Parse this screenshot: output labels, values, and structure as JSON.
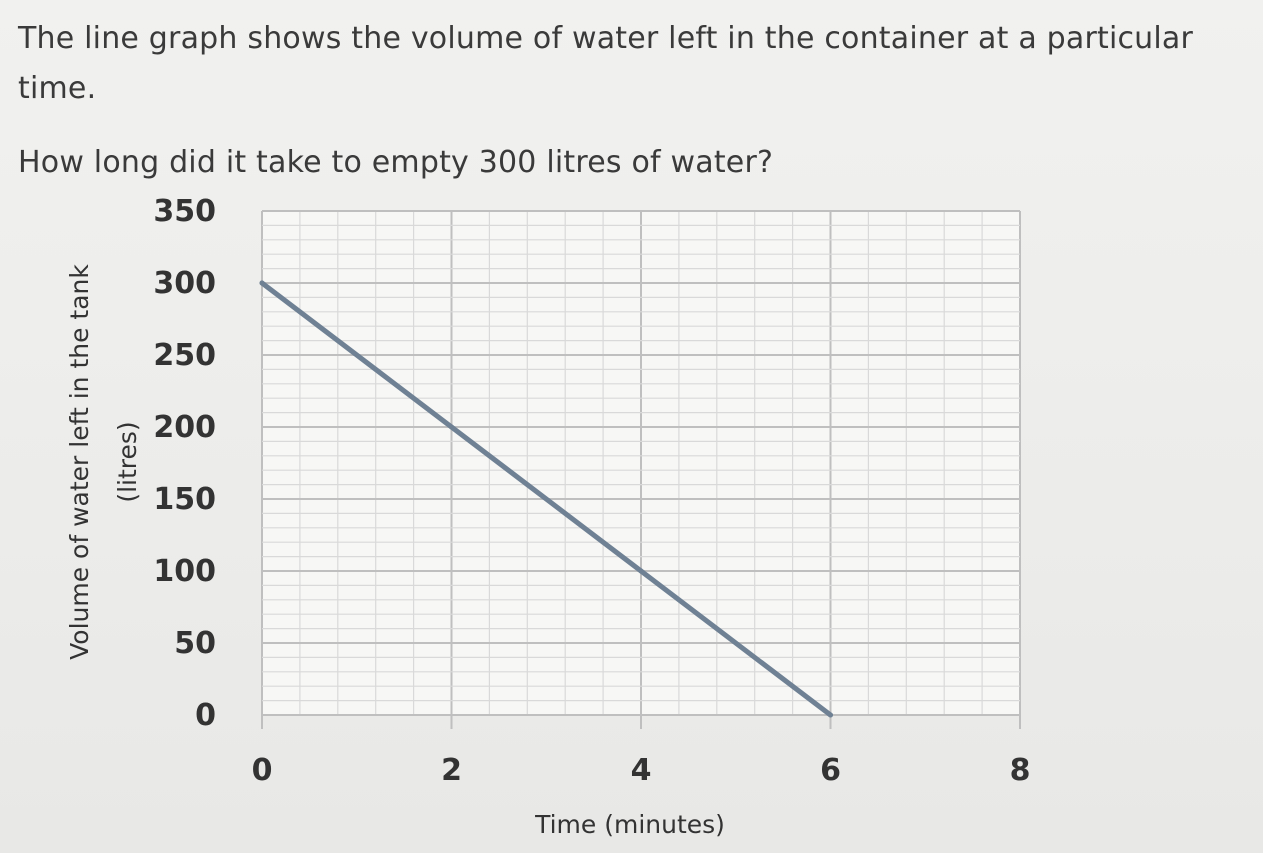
{
  "question": {
    "line1": "The line graph shows the volume of water left in the container at a particular time.",
    "line2": "How long did it take to empty 300 litres of water?"
  },
  "chart_data": {
    "type": "line",
    "xlabel": "Time (minutes)",
    "ylabel_line1": "Volume of water left in the tank",
    "ylabel_line2": "(litres)",
    "xlim": [
      0,
      8
    ],
    "ylim": [
      0,
      350
    ],
    "xticks": [
      0,
      2,
      4,
      6,
      8
    ],
    "yticks": [
      0,
      50,
      100,
      150,
      200,
      250,
      300,
      350
    ],
    "grid": true,
    "x_minor_step": 0.4,
    "y_minor_step": 10,
    "series": [
      {
        "x": [
          0,
          2,
          4,
          6
        ],
        "y": [
          300,
          200,
          100,
          0
        ]
      }
    ],
    "colors": {
      "line": "#6f8194",
      "grid_major": "#bfbfbf",
      "grid_minor": "#d9d9d9"
    }
  }
}
